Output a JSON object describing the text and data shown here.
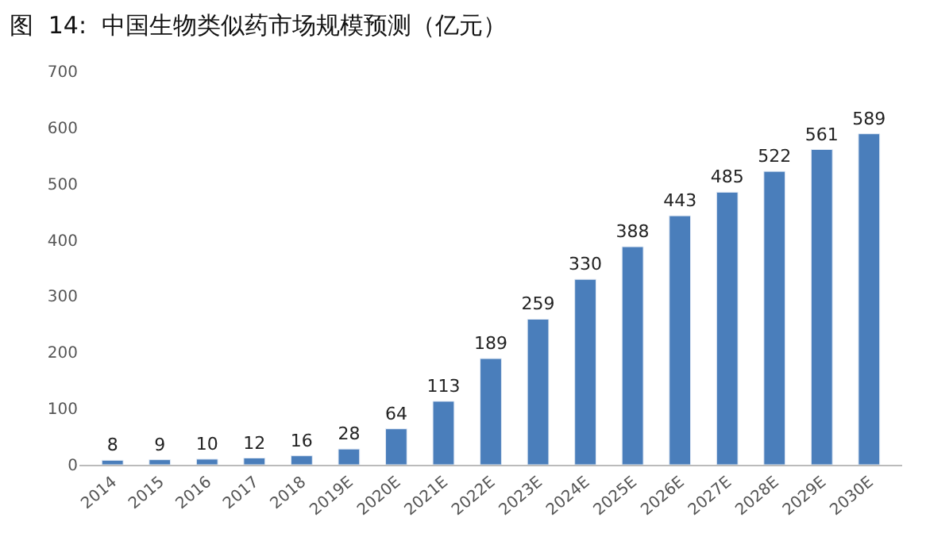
{
  "chart_data": {
    "type": "bar",
    "title": "图  14:  中国生物类似药市场规模预测（亿元）",
    "categories": [
      "2014",
      "2015",
      "2016",
      "2017",
      "2018",
      "2019E",
      "2020E",
      "2021E",
      "2022E",
      "2023E",
      "2024E",
      "2025E",
      "2026E",
      "2027E",
      "2028E",
      "2029E",
      "2030E"
    ],
    "values": [
      8,
      9,
      10,
      12,
      16,
      28,
      64,
      113,
      189,
      259,
      330,
      388,
      443,
      485,
      522,
      561,
      589
    ],
    "color": "#4a7ebb",
    "ylim": [
      0,
      700
    ],
    "yticks": [
      0,
      100,
      200,
      300,
      400,
      500,
      600,
      700
    ],
    "data_labels": true,
    "legend": false
  }
}
